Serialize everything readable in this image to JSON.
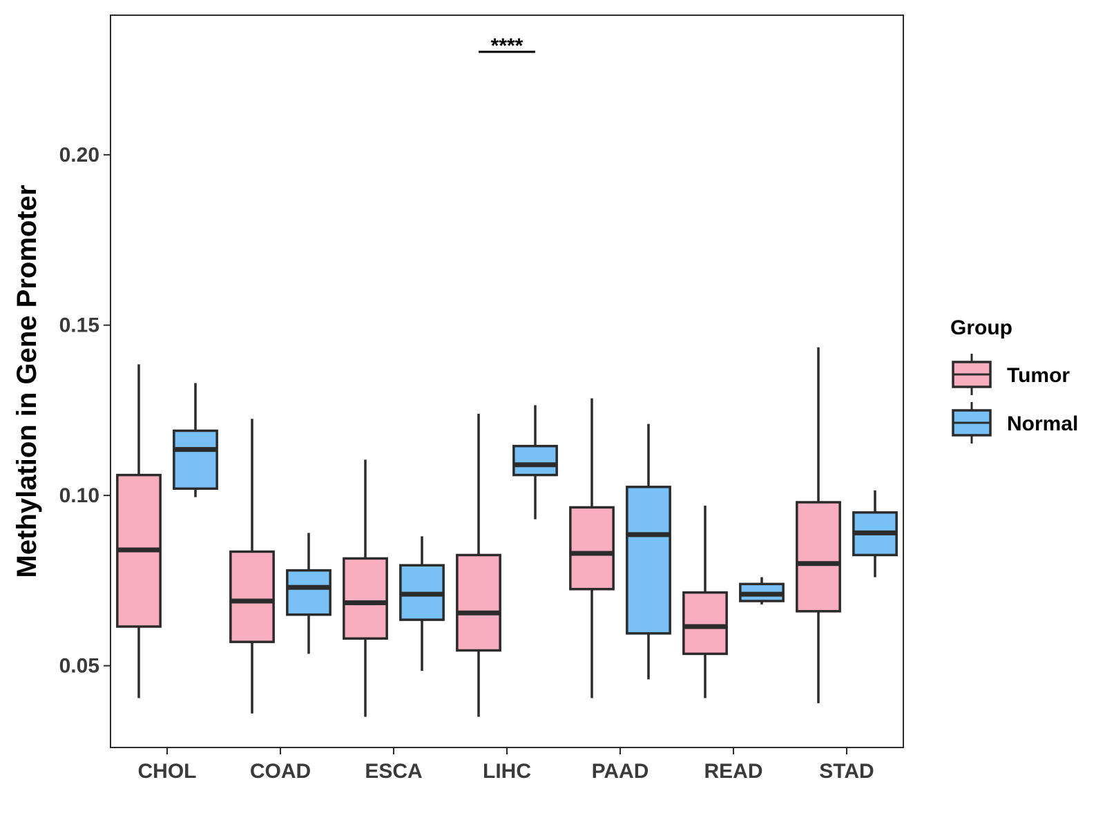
{
  "chart_data": {
    "type": "boxplot",
    "title": "",
    "xlabel": "",
    "ylabel": "Methylation in Gene Promoter",
    "ylim": [
      0.026,
      0.241
    ],
    "yticks": [
      0.05,
      0.1,
      0.15,
      0.2
    ],
    "ytick_labels": [
      "0.05",
      "0.10",
      "0.15",
      "0.20"
    ],
    "categories": [
      "CHOL",
      "COAD",
      "ESCA",
      "LIHC",
      "PAAD",
      "READ",
      "STAD"
    ],
    "legend": {
      "title": "Group",
      "position": "right",
      "entries": [
        "Tumor",
        "Normal"
      ]
    },
    "colors": {
      "Tumor": "#f9aec0",
      "Normal": "#77c1f7",
      "outline": "#2b2b2b"
    },
    "series": [
      {
        "name": "Tumor",
        "boxes": [
          {
            "category": "CHOL",
            "min": 0.0405,
            "q1": 0.0615,
            "median": 0.084,
            "q3": 0.106,
            "max": 0.1385
          },
          {
            "category": "COAD",
            "min": 0.036,
            "q1": 0.057,
            "median": 0.069,
            "q3": 0.0835,
            "max": 0.1225
          },
          {
            "category": "ESCA",
            "min": 0.035,
            "q1": 0.058,
            "median": 0.0685,
            "q3": 0.0815,
            "max": 0.1105
          },
          {
            "category": "LIHC",
            "min": 0.035,
            "q1": 0.0545,
            "median": 0.0655,
            "q3": 0.0825,
            "max": 0.124
          },
          {
            "category": "PAAD",
            "min": 0.0405,
            "q1": 0.0725,
            "median": 0.083,
            "q3": 0.0965,
            "max": 0.1285
          },
          {
            "category": "READ",
            "min": 0.0405,
            "q1": 0.0535,
            "median": 0.0615,
            "q3": 0.0715,
            "max": 0.097
          },
          {
            "category": "STAD",
            "min": 0.039,
            "q1": 0.066,
            "median": 0.08,
            "q3": 0.098,
            "max": 0.1435
          }
        ]
      },
      {
        "name": "Normal",
        "boxes": [
          {
            "category": "CHOL",
            "min": 0.0995,
            "q1": 0.102,
            "median": 0.1135,
            "q3": 0.119,
            "max": 0.133
          },
          {
            "category": "COAD",
            "min": 0.0535,
            "q1": 0.065,
            "median": 0.073,
            "q3": 0.078,
            "max": 0.089
          },
          {
            "category": "ESCA",
            "min": 0.0485,
            "q1": 0.0635,
            "median": 0.071,
            "q3": 0.0795,
            "max": 0.088
          },
          {
            "category": "LIHC",
            "min": 0.093,
            "q1": 0.106,
            "median": 0.109,
            "q3": 0.1145,
            "max": 0.1265
          },
          {
            "category": "PAAD",
            "min": 0.046,
            "q1": 0.0595,
            "median": 0.0885,
            "q3": 0.1025,
            "max": 0.121
          },
          {
            "category": "READ",
            "min": 0.068,
            "q1": 0.069,
            "median": 0.071,
            "q3": 0.074,
            "max": 0.076
          },
          {
            "category": "STAD",
            "min": 0.076,
            "q1": 0.0825,
            "median": 0.089,
            "q3": 0.095,
            "max": 0.1015
          }
        ]
      }
    ],
    "annotations": [
      {
        "category": "LIHC",
        "text": "****"
      }
    ]
  }
}
